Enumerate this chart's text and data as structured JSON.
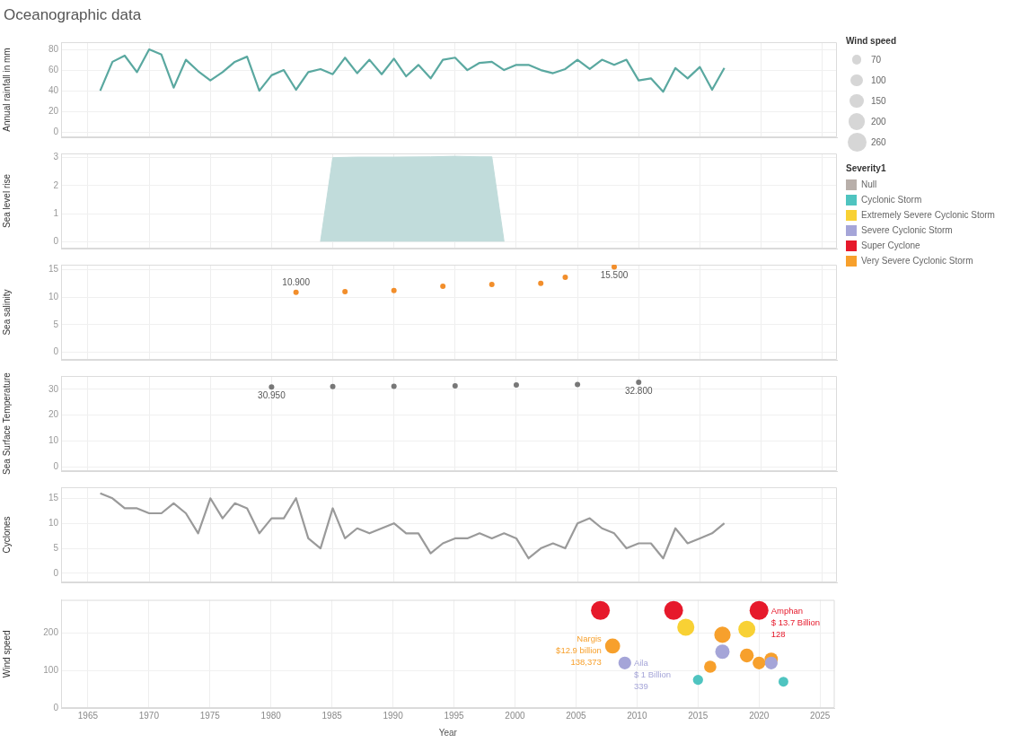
{
  "chart_data": [
    {
      "type": "line",
      "title": "Oceanographic data",
      "ylabel": "Annual rainfall in mm",
      "x": [
        1966,
        1967,
        1968,
        1969,
        1970,
        1971,
        1972,
        1973,
        1974,
        1975,
        1976,
        1977,
        1978,
        1979,
        1980,
        1981,
        1982,
        1983,
        1984,
        1985,
        1986,
        1987,
        1988,
        1989,
        1990,
        1991,
        1992,
        1993,
        1994,
        1995,
        1996,
        1997,
        1998,
        1999,
        2000,
        2001,
        2002,
        2003,
        2004,
        2005,
        2006,
        2007,
        2008,
        2009,
        2010,
        2011,
        2012,
        2013,
        2014,
        2015,
        2016,
        2017
      ],
      "series": [
        {
          "color": "#5aa8a0",
          "values": [
            40,
            68,
            74,
            58,
            80,
            75,
            43,
            70,
            59,
            50,
            58,
            68,
            73,
            40,
            55,
            60,
            41,
            58,
            61,
            56,
            72,
            57,
            70,
            56,
            71,
            54,
            65,
            52,
            70,
            72,
            60,
            67,
            68,
            60,
            65,
            65,
            60,
            57,
            61,
            70,
            61,
            70,
            65,
            70,
            50,
            52,
            39,
            62,
            52,
            63,
            41,
            62
          ]
        }
      ],
      "xlim": [
        1962.8,
        2026.2
      ],
      "xticks": [
        1965,
        1970,
        1975,
        1980,
        1985,
        1990,
        1995,
        2000,
        2005,
        2010,
        2015,
        2020,
        2025
      ],
      "ylim": [
        -5,
        87
      ],
      "yticks": [
        0,
        20,
        40,
        60,
        80
      ],
      "grid": true,
      "tick_labels": "y"
    },
    {
      "type": "area",
      "ylabel": "Sea level rise",
      "x": [
        1984,
        1985,
        1987,
        1990,
        1993,
        1995,
        1997,
        1998,
        1999
      ],
      "series": [
        {
          "color": "#c1dcdb",
          "values": [
            0,
            3,
            3.02,
            3.02,
            3.03,
            3.05,
            3.03,
            3.03,
            0
          ]
        }
      ],
      "xlim": [
        1962.8,
        2026.2
      ],
      "xticks": [
        1965,
        1970,
        1975,
        1980,
        1985,
        1990,
        1995,
        2000,
        2005,
        2010,
        2015,
        2020,
        2025
      ],
      "ylim": [
        -0.25,
        3.15
      ],
      "yticks": [
        0,
        1,
        2,
        3
      ],
      "grid": true,
      "tick_labels": "y"
    },
    {
      "type": "scatter",
      "ylabel": "Sea salinity",
      "x": [
        1982,
        1986,
        1990,
        1994,
        1998,
        2002,
        2004,
        2008
      ],
      "marker": "circle",
      "series": [
        {
          "color": "#f28e2b",
          "values": [
            10.9,
            11.0,
            11.2,
            12.0,
            12.3,
            12.5,
            13.6,
            15.5
          ],
          "value_labels": [
            "10.900",
            null,
            null,
            null,
            null,
            null,
            null,
            "15.500"
          ]
        }
      ],
      "xlim": [
        1962.8,
        2026.2
      ],
      "xticks": [
        1965,
        1970,
        1975,
        1980,
        1985,
        1990,
        1995,
        2000,
        2005,
        2010,
        2015,
        2020,
        2025
      ],
      "ylim": [
        -1.4,
        15.9
      ],
      "yticks": [
        0,
        5,
        10,
        15
      ],
      "grid": true,
      "tick_labels": "y"
    },
    {
      "type": "scatter",
      "ylabel": "Sea Surface Temperature",
      "x": [
        1980,
        1985,
        1990,
        1995,
        2000,
        2005,
        2010
      ],
      "marker": "circle",
      "series": [
        {
          "color": "#777777",
          "values": [
            30.95,
            31.1,
            31.2,
            31.4,
            31.7,
            31.9,
            32.8
          ],
          "value_labels": [
            "30.950",
            null,
            null,
            null,
            null,
            null,
            "32.800"
          ]
        }
      ],
      "xlim": [
        1962.8,
        2026.2
      ],
      "xticks": [
        1965,
        1970,
        1975,
        1980,
        1985,
        1990,
        1995,
        2000,
        2005,
        2010,
        2015,
        2020,
        2025
      ],
      "ylim": [
        -1.7,
        35.2
      ],
      "yticks": [
        0,
        10,
        20,
        30
      ],
      "grid": true,
      "tick_labels": "y"
    },
    {
      "type": "line",
      "ylabel": "Cyclones",
      "x": [
        1966,
        1967,
        1968,
        1969,
        1970,
        1971,
        1972,
        1973,
        1974,
        1975,
        1976,
        1977,
        1978,
        1979,
        1980,
        1981,
        1982,
        1983,
        1984,
        1985,
        1986,
        1987,
        1988,
        1989,
        1990,
        1991,
        1992,
        1993,
        1994,
        1995,
        1996,
        1997,
        1998,
        1999,
        2000,
        2001,
        2002,
        2003,
        2004,
        2005,
        2006,
        2007,
        2008,
        2009,
        2010,
        2011,
        2012,
        2013,
        2014,
        2015,
        2016,
        2017
      ],
      "series": [
        {
          "color": "#9a9a9a",
          "values": [
            16,
            15,
            13,
            13,
            12,
            12,
            14,
            12,
            8,
            15,
            11,
            14,
            13,
            8,
            11,
            11,
            15,
            7,
            5,
            13,
            7,
            9,
            8,
            9,
            10,
            8,
            8,
            4,
            6,
            7,
            7,
            8,
            7,
            8,
            7,
            3,
            5,
            6,
            5,
            10,
            11,
            9,
            8,
            5,
            6,
            6,
            3,
            9,
            6,
            7,
            8,
            10
          ]
        }
      ],
      "xlim": [
        1962.8,
        2026.2
      ],
      "xticks": [
        1965,
        1970,
        1975,
        1980,
        1985,
        1990,
        1995,
        2000,
        2005,
        2010,
        2015,
        2020,
        2025
      ],
      "ylim": [
        -1.8,
        17.2
      ],
      "yticks": [
        0,
        5,
        10,
        15
      ],
      "grid": true,
      "tick_labels": "y"
    },
    {
      "type": "bubble",
      "xlabel": "Year",
      "ylabel": "Wind speed",
      "legend": "right",
      "legend_title": "Severity1",
      "size_legend": [
        70,
        100,
        150,
        200,
        260
      ],
      "series": [
        {
          "name": "Null",
          "color": "#b8afaa"
        },
        {
          "name": "Cyclonic Storm",
          "color": "#4fc4c0",
          "x": [
            2015,
            2022
          ],
          "values": [
            75,
            70
          ],
          "sizes": [
            75,
            70
          ]
        },
        {
          "name": "Extremely Severe Cyclonic Storm",
          "color": "#f8d134",
          "x": [
            2014,
            2019
          ],
          "values": [
            215,
            210
          ],
          "sizes": [
            215,
            210
          ]
        },
        {
          "name": "Severe Cyclonic Storm",
          "color": "#a5a5d8",
          "x": [
            2009,
            2017,
            2021
          ],
          "values": [
            120,
            150,
            120
          ],
          "sizes": [
            120,
            150,
            120
          ]
        },
        {
          "name": "Super Cyclone",
          "color": "#e6192b",
          "x": [
            2007,
            2013,
            2020
          ],
          "values": [
            260,
            260,
            260
          ],
          "sizes": [
            260,
            260,
            260
          ]
        },
        {
          "name": "Very Severe Cyclonic Storm",
          "color": "#f7a02c",
          "x": [
            2008,
            2016,
            2017,
            2019,
            2020,
            2021
          ],
          "values": [
            165,
            110,
            195,
            140,
            120,
            130
          ],
          "sizes": [
            165,
            110,
            195,
            140,
            120,
            130
          ]
        }
      ],
      "annotations": [
        {
          "text": "Nargis\n$12.9 billion\n138,373",
          "x": 2008,
          "y": 165
        },
        {
          "text": "Aila\n$ 1 Billion\n339",
          "x": 2009,
          "y": 120
        },
        {
          "text": "Amphan\n$ 13.7 Billion\n128",
          "x": 2020,
          "y": 260
        }
      ],
      "xlim": [
        1962.8,
        2026.2
      ],
      "xticks": [
        1965,
        1970,
        1975,
        1980,
        1985,
        1990,
        1995,
        2000,
        2005,
        2010,
        2015,
        2020,
        2025
      ],
      "ylim": [
        0,
        288
      ],
      "yticks": [
        0,
        100,
        200
      ],
      "grid": true
    }
  ]
}
